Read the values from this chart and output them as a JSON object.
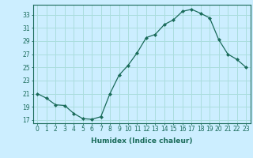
{
  "x": [
    0,
    1,
    2,
    3,
    4,
    5,
    6,
    7,
    8,
    9,
    10,
    11,
    12,
    13,
    14,
    15,
    16,
    17,
    18,
    19,
    20,
    21,
    22,
    23
  ],
  "y": [
    21.0,
    20.3,
    19.3,
    19.2,
    18.0,
    17.2,
    17.1,
    17.5,
    21.0,
    23.8,
    25.3,
    27.2,
    29.5,
    30.0,
    31.5,
    32.2,
    33.5,
    33.8,
    33.2,
    32.5,
    29.2,
    27.0,
    26.2,
    25.0
  ],
  "line_color": "#1a6b5a",
  "marker": "D",
  "marker_size": 2.0,
  "bg_color": "#cceeff",
  "grid_color": "#aadddd",
  "xlabel": "Humidex (Indice chaleur)",
  "xlim": [
    -0.5,
    23.5
  ],
  "ylim": [
    16.5,
    34.5
  ],
  "yticks": [
    17,
    19,
    21,
    23,
    25,
    27,
    29,
    31,
    33
  ],
  "xticks": [
    0,
    1,
    2,
    3,
    4,
    5,
    6,
    7,
    8,
    9,
    10,
    11,
    12,
    13,
    14,
    15,
    16,
    17,
    18,
    19,
    20,
    21,
    22,
    23
  ],
  "tick_color": "#1a6b5a",
  "label_fontsize": 6.5,
  "tick_fontsize": 5.5
}
